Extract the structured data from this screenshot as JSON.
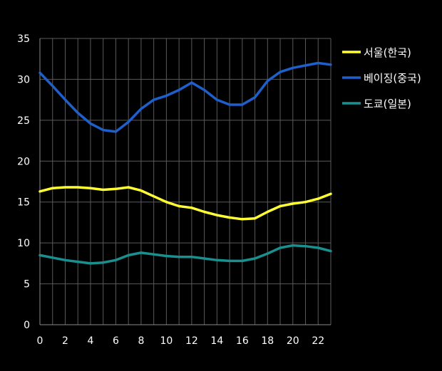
{
  "chart_data": {
    "type": "line",
    "title": "",
    "xlabel": "",
    "ylabel": "",
    "x": [
      0,
      1,
      2,
      3,
      4,
      5,
      6,
      7,
      8,
      9,
      10,
      11,
      12,
      13,
      14,
      15,
      16,
      17,
      18,
      19,
      20,
      21,
      22,
      23
    ],
    "xticks": [
      0,
      2,
      4,
      6,
      8,
      10,
      12,
      14,
      16,
      18,
      20,
      22
    ],
    "xlim": [
      0,
      23
    ],
    "ylim": [
      0,
      35
    ],
    "yticks": [
      0,
      5,
      10,
      15,
      20,
      25,
      30,
      35
    ],
    "grid": "vertical and horizontal",
    "legend_position": "right",
    "series": [
      {
        "name": "서울(한국)",
        "color": "#ffff33",
        "values": [
          16.3,
          16.7,
          16.8,
          16.8,
          16.7,
          16.5,
          16.6,
          16.8,
          16.4,
          15.7,
          15.0,
          14.5,
          14.3,
          13.8,
          13.4,
          13.1,
          12.9,
          13.0,
          13.8,
          14.5,
          14.8,
          15.0,
          15.4,
          16.0
        ]
      },
      {
        "name": "베이징(중국)",
        "color": "#1f5fcc",
        "values": [
          30.8,
          29.2,
          27.5,
          25.9,
          24.6,
          23.8,
          23.6,
          24.8,
          26.4,
          27.5,
          28.0,
          28.7,
          29.6,
          28.7,
          27.5,
          26.9,
          26.9,
          27.8,
          29.8,
          30.9,
          31.4,
          31.7,
          32.0,
          31.8
        ]
      },
      {
        "name": "도쿄(일본)",
        "color": "#1a8f8f",
        "values": [
          8.5,
          8.2,
          7.9,
          7.7,
          7.5,
          7.6,
          7.9,
          8.5,
          8.8,
          8.6,
          8.4,
          8.3,
          8.3,
          8.1,
          7.9,
          7.8,
          7.8,
          8.1,
          8.7,
          9.4,
          9.7,
          9.6,
          9.4,
          9.0
        ]
      }
    ]
  }
}
